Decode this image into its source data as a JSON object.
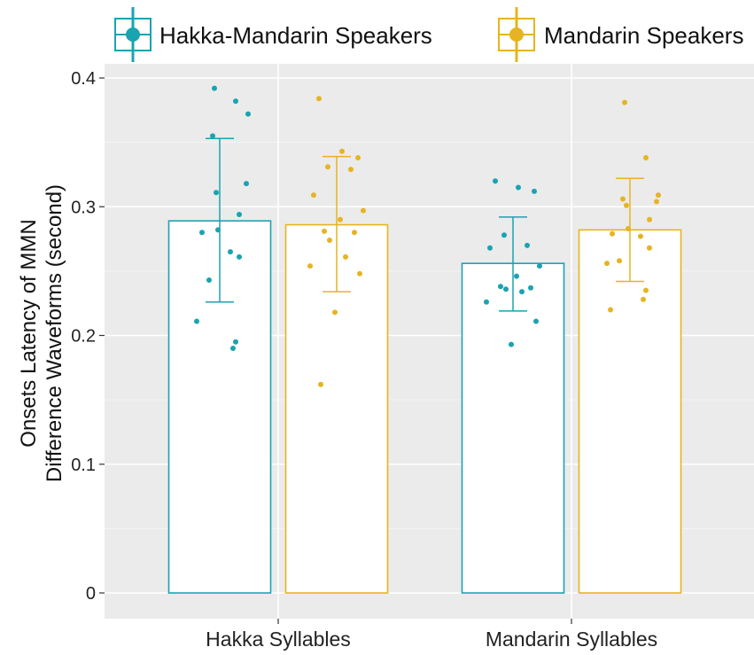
{
  "chart_data": {
    "type": "bar",
    "title": "",
    "xlabel": "",
    "ylabel_lines": [
      "Onsets Latency of MMN",
      "Difference Waveforms (second)"
    ],
    "categories": [
      "Hakka Syllables",
      "Mandarin Syllables"
    ],
    "ylim": [
      0,
      0.42
    ],
    "yticks": [
      0,
      0.1,
      0.2,
      0.3,
      0.4
    ],
    "ytick_labels": [
      "0",
      "0.1",
      "0.2",
      "0.3",
      "0.4"
    ],
    "grid": true,
    "legend_position": "top",
    "series": [
      {
        "name": "Hakka-Mandarin Speakers",
        "color": "#1aa3b0",
        "values": [
          0.289,
          0.256
        ],
        "error_low": [
          0.226,
          0.219
        ],
        "error_high": [
          0.353,
          0.292
        ],
        "points": [
          [
            0.392,
            0.382,
            0.372,
            0.355,
            0.318,
            0.311,
            0.294,
            0.282,
            0.28,
            0.265,
            0.261,
            0.243,
            0.211,
            0.195,
            0.19
          ],
          [
            0.32,
            0.315,
            0.312,
            0.278,
            0.27,
            0.268,
            0.254,
            0.246,
            0.238,
            0.237,
            0.236,
            0.234,
            0.226,
            0.211,
            0.193
          ]
        ]
      },
      {
        "name": "Mandarin Speakers",
        "color": "#e6b422",
        "values": [
          0.286,
          0.282
        ],
        "error_low": [
          0.234,
          0.242
        ],
        "error_high": [
          0.339,
          0.322
        ],
        "points": [
          [
            0.384,
            0.343,
            0.338,
            0.331,
            0.329,
            0.309,
            0.297,
            0.29,
            0.281,
            0.28,
            0.274,
            0.261,
            0.254,
            0.248,
            0.218,
            0.162
          ],
          [
            0.381,
            0.338,
            0.309,
            0.306,
            0.304,
            0.301,
            0.29,
            0.283,
            0.279,
            0.277,
            0.268,
            0.258,
            0.256,
            0.235,
            0.228,
            0.22
          ]
        ]
      }
    ]
  }
}
